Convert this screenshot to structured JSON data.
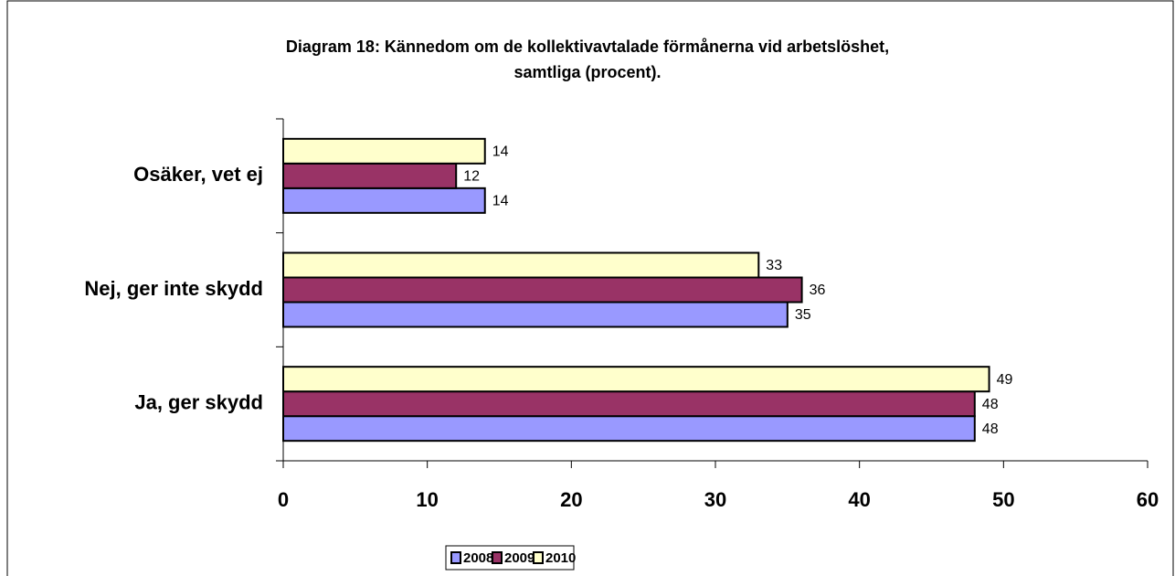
{
  "chart_data": {
    "type": "bar",
    "orientation": "horizontal",
    "title": "Diagram 18: Kännedom om de kollektivavtalade förmånerna vid arbetslöshet,",
    "subtitle": "samtliga (procent).",
    "categories": [
      "Osäker, vet ej",
      "Nej, ger inte skydd",
      "Ja, ger skydd"
    ],
    "series": [
      {
        "name": "2008",
        "color": "#9999ff",
        "values": [
          14,
          35,
          48
        ]
      },
      {
        "name": "2009",
        "color": "#993366",
        "values": [
          12,
          36,
          48
        ]
      },
      {
        "name": "2010",
        "color": "#ffffcc",
        "values": [
          14,
          33,
          49
        ]
      }
    ],
    "xlim": [
      0,
      60
    ],
    "xticks": [
      0,
      10,
      20,
      30,
      40,
      50,
      60
    ],
    "grid": false,
    "legend": "bottom"
  }
}
